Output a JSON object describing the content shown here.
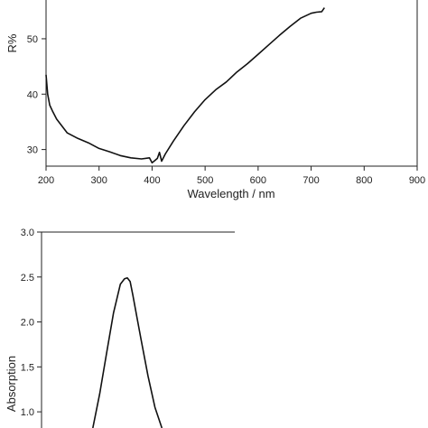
{
  "chart_data": [
    {
      "type": "line",
      "title": "",
      "xlabel": "Wavelength / nm",
      "ylabel": "R%",
      "xlim": [
        200,
        900
      ],
      "ylim": [
        27,
        57
      ],
      "xticks": [
        200,
        300,
        400,
        500,
        600,
        700,
        800,
        900
      ],
      "yticks": [
        30,
        40,
        50
      ],
      "grid": false,
      "series": [
        {
          "x": [
            200,
            203,
            207,
            212,
            220,
            240,
            260,
            280,
            300,
            320,
            340,
            360,
            380,
            395,
            400,
            405,
            410,
            414,
            418,
            425,
            440,
            460,
            480,
            500,
            520,
            540,
            560,
            580,
            600,
            620,
            640,
            660,
            680,
            700,
            710,
            720,
            725
          ],
          "y": [
            43.5,
            40,
            38,
            37,
            35.5,
            33,
            32,
            31.2,
            30.2,
            29.6,
            28.9,
            28.5,
            28.3,
            28.5,
            27.6,
            28.0,
            28.4,
            29.5,
            27.9,
            29.2,
            31.5,
            34.3,
            36.8,
            39.0,
            40.8,
            42.2,
            44.0,
            45.5,
            47.2,
            48.9,
            50.6,
            52.2,
            53.7,
            54.6,
            54.8,
            54.9,
            55.6
          ]
        }
      ]
    },
    {
      "type": "line",
      "title": "",
      "xlabel": "",
      "ylabel": "Absorption",
      "ylim": [
        0.82,
        3.0
      ],
      "yticks": [
        1.0,
        1.5,
        2.0,
        2.5,
        3.0
      ],
      "ytick_labels": [
        "1.0",
        "1.5",
        "2.0",
        "2.5",
        "3.0"
      ],
      "grid": false,
      "series": [
        {
          "x": [
            325,
            330,
            335,
            340,
            345,
            348,
            350,
            352,
            354,
            357,
            360,
            365,
            370,
            375
          ],
          "y": [
            0.82,
            1.2,
            1.65,
            2.1,
            2.42,
            2.48,
            2.49,
            2.45,
            2.3,
            2.05,
            1.8,
            1.4,
            1.05,
            0.82
          ]
        }
      ]
    }
  ]
}
